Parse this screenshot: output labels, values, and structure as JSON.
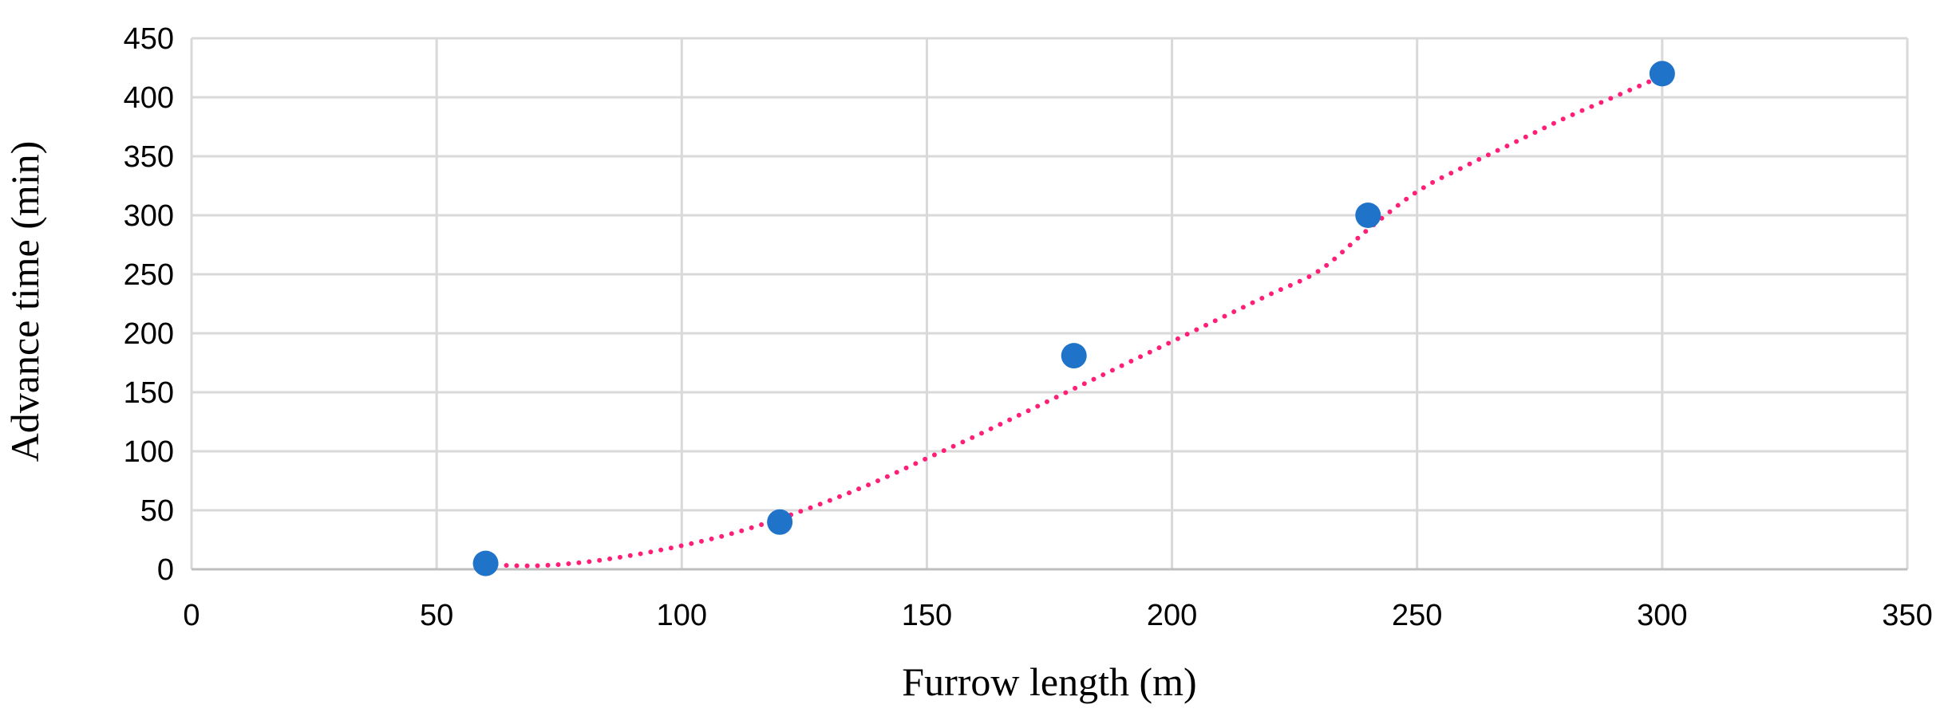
{
  "chart_data": {
    "type": "scatter",
    "title": "",
    "xlabel": "Furrow length (m)",
    "ylabel": "Advance time (min)",
    "xlim": [
      0,
      350
    ],
    "ylim": [
      0,
      450
    ],
    "x_ticks": [
      0,
      50,
      100,
      150,
      200,
      250,
      300,
      350
    ],
    "y_ticks": [
      0,
      50,
      100,
      150,
      200,
      250,
      300,
      350,
      400,
      450
    ],
    "grid": true,
    "legend": "none",
    "series": [
      {
        "type": "scatter",
        "color": "#1f73c8",
        "x": [
          60,
          120,
          180,
          240,
          300
        ],
        "y": [
          5,
          40,
          181,
          300,
          420
        ]
      },
      {
        "type": "trendline",
        "style": "dotted",
        "color": "#ff1f77",
        "x": [
          60,
          70,
          80,
          90,
          100,
          110,
          120,
          130,
          140,
          150,
          160,
          170,
          180,
          190,
          200,
          210,
          220,
          230,
          240,
          250,
          260,
          270,
          280,
          290,
          300
        ],
        "y": [
          4,
          3,
          6,
          12,
          20,
          30,
          43,
          58,
          75,
          94,
          113,
          133,
          153,
          173,
          193,
          213,
          233,
          253,
          288,
          320,
          342,
          362,
          382,
          400,
          418
        ]
      }
    ]
  }
}
